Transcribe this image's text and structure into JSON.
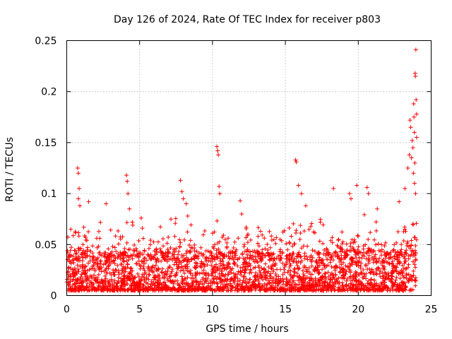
{
  "chart_data": {
    "type": "scatter",
    "title": "Day 126 of 2024, Rate Of TEC Index for receiver p803",
    "xlabel": "GPS time / hours",
    "ylabel": "ROTI / TECUs",
    "xlim": [
      0,
      25
    ],
    "ylim": [
      0,
      0.25
    ],
    "xticks": [
      0,
      5,
      10,
      15,
      20,
      25
    ],
    "yticks": [
      0,
      0.05,
      0.1,
      0.15,
      0.2,
      0.25
    ],
    "xtick_labels": [
      "0",
      "5",
      "10",
      "15",
      "20",
      "25"
    ],
    "ytick_labels": [
      "0",
      "0.05",
      "0.1",
      "0.15",
      "0.2",
      "0.25"
    ],
    "grid": true,
    "marker": "plus",
    "color": "#ff0000",
    "series": [
      {
        "name": "ROTI",
        "baseline_range": [
          0.005,
          0.035
        ],
        "notable_points": [
          [
            0.75,
            0.125
          ],
          [
            0.8,
            0.12
          ],
          [
            0.85,
            0.105
          ],
          [
            0.8,
            0.095
          ],
          [
            0.9,
            0.088
          ],
          [
            1.5,
            0.092
          ],
          [
            2.7,
            0.09
          ],
          [
            4.1,
            0.118
          ],
          [
            4.15,
            0.112
          ],
          [
            4.2,
            0.1
          ],
          [
            4.3,
            0.085
          ],
          [
            4.5,
            0.072
          ],
          [
            7.8,
            0.113
          ],
          [
            7.9,
            0.102
          ],
          [
            8.0,
            0.095
          ],
          [
            8.2,
            0.09
          ],
          [
            8.3,
            0.078
          ],
          [
            10.3,
            0.146
          ],
          [
            10.35,
            0.142
          ],
          [
            10.4,
            0.138
          ],
          [
            10.45,
            0.107
          ],
          [
            10.5,
            0.1
          ],
          [
            11.9,
            0.093
          ],
          [
            12.0,
            0.08
          ],
          [
            15.7,
            0.133
          ],
          [
            15.75,
            0.131
          ],
          [
            15.9,
            0.108
          ],
          [
            16.1,
            0.1
          ],
          [
            16.4,
            0.088
          ],
          [
            18.3,
            0.105
          ],
          [
            19.4,
            0.1
          ],
          [
            19.5,
            0.095
          ],
          [
            19.9,
            0.108
          ],
          [
            20.6,
            0.106
          ],
          [
            20.7,
            0.1
          ],
          [
            21.3,
            0.085
          ],
          [
            22.8,
            0.092
          ],
          [
            23.2,
            0.105
          ],
          [
            23.4,
            0.125
          ],
          [
            23.5,
            0.138
          ],
          [
            23.55,
            0.172
          ],
          [
            23.6,
            0.165
          ],
          [
            23.65,
            0.135
          ],
          [
            23.7,
            0.152
          ],
          [
            23.75,
            0.145
          ],
          [
            23.8,
            0.188
          ],
          [
            23.82,
            0.175
          ],
          [
            23.85,
            0.16
          ],
          [
            23.88,
            0.13
          ],
          [
            23.9,
            0.218
          ],
          [
            23.92,
            0.215
          ],
          [
            23.95,
            0.241
          ],
          [
            23.97,
            0.192
          ],
          [
            24.0,
            0.178
          ],
          [
            24.0,
            0.155
          ],
          [
            23.78,
            0.12
          ],
          [
            23.86,
            0.11
          ],
          [
            23.93,
            0.1
          ]
        ]
      }
    ]
  }
}
